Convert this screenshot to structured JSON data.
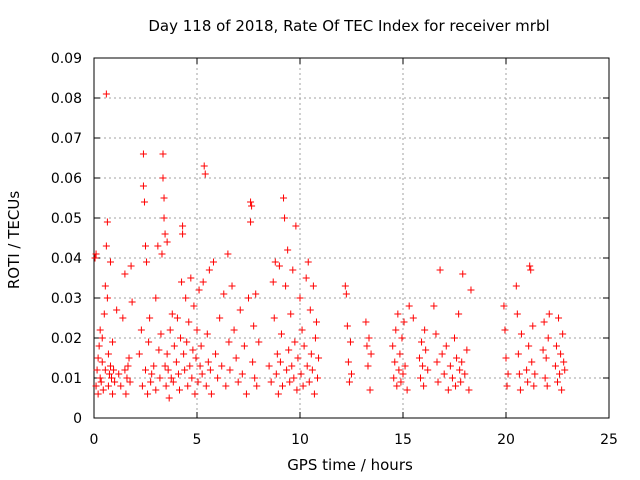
{
  "chart_data": {
    "type": "scatter",
    "title": "Day 118 of 2018, Rate Of TEC Index for receiver mrbl",
    "xlabel": "GPS time / hours",
    "ylabel": "ROTI / TECUs",
    "xlim": [
      0,
      25
    ],
    "ylim": [
      0,
      0.09
    ],
    "xticks": [
      0,
      5,
      10,
      15,
      20,
      25
    ],
    "xtick_labels": [
      "0",
      "5",
      "10",
      "15",
      "20",
      "25"
    ],
    "yticks": [
      0,
      0.01,
      0.02,
      0.03,
      0.04,
      0.05,
      0.06,
      0.07,
      0.08,
      0.09
    ],
    "ytick_labels": [
      "0",
      "0.01",
      "0.02",
      "0.03",
      "0.04",
      "0.05",
      "0.06",
      "0.07",
      "0.08",
      "0.09"
    ],
    "grid": true,
    "marker": "+",
    "color": "#ff0000",
    "series": [
      {
        "name": "ROTI",
        "points": [
          [
            0.05,
            0.04
          ],
          [
            0.1,
            0.041
          ],
          [
            0.1,
            0.008
          ],
          [
            0.15,
            0.012
          ],
          [
            0.2,
            0.015
          ],
          [
            0.2,
            0.006
          ],
          [
            0.25,
            0.018
          ],
          [
            0.3,
            0.01
          ],
          [
            0.3,
            0.022
          ],
          [
            0.35,
            0.009
          ],
          [
            0.4,
            0.014
          ],
          [
            0.4,
            0.02
          ],
          [
            0.45,
            0.007
          ],
          [
            0.5,
            0.026
          ],
          [
            0.55,
            0.033
          ],
          [
            0.55,
            0.012
          ],
          [
            0.6,
            0.081
          ],
          [
            0.6,
            0.043
          ],
          [
            0.65,
            0.049
          ],
          [
            0.65,
            0.03
          ],
          [
            0.7,
            0.016
          ],
          [
            0.7,
            0.008
          ],
          [
            0.75,
            0.011
          ],
          [
            0.8,
            0.039
          ],
          [
            0.8,
            0.013
          ],
          [
            0.85,
            0.01
          ],
          [
            0.9,
            0.019
          ],
          [
            0.9,
            0.006
          ],
          [
            0.95,
            0.012
          ],
          [
            1.0,
            0.009
          ],
          [
            1.1,
            0.027
          ],
          [
            1.2,
            0.011
          ],
          [
            1.3,
            0.008
          ],
          [
            1.4,
            0.025
          ],
          [
            1.5,
            0.012
          ],
          [
            1.5,
            0.036
          ],
          [
            1.55,
            0.006
          ],
          [
            1.6,
            0.01
          ],
          [
            1.65,
            0.013
          ],
          [
            1.7,
            0.015
          ],
          [
            1.75,
            0.009
          ],
          [
            1.8,
            0.038
          ],
          [
            1.85,
            0.029
          ],
          [
            2.2,
            0.016
          ],
          [
            2.3,
            0.022
          ],
          [
            2.35,
            0.008
          ],
          [
            2.4,
            0.066
          ],
          [
            2.4,
            0.058
          ],
          [
            2.45,
            0.054
          ],
          [
            2.5,
            0.043
          ],
          [
            2.5,
            0.012
          ],
          [
            2.55,
            0.039
          ],
          [
            2.6,
            0.006
          ],
          [
            2.65,
            0.019
          ],
          [
            2.7,
            0.025
          ],
          [
            2.75,
            0.009
          ],
          [
            2.8,
            0.011
          ],
          [
            2.9,
            0.013
          ],
          [
            3.0,
            0.007
          ],
          [
            3.0,
            0.03
          ],
          [
            3.1,
            0.043
          ],
          [
            3.15,
            0.017
          ],
          [
            3.2,
            0.01
          ],
          [
            3.25,
            0.021
          ],
          [
            3.3,
            0.041
          ],
          [
            3.35,
            0.066
          ],
          [
            3.35,
            0.06
          ],
          [
            3.4,
            0.055
          ],
          [
            3.4,
            0.05
          ],
          [
            3.45,
            0.046
          ],
          [
            3.45,
            0.013
          ],
          [
            3.5,
            0.008
          ],
          [
            3.55,
            0.044
          ],
          [
            3.55,
            0.016
          ],
          [
            3.6,
            0.012
          ],
          [
            3.65,
            0.005
          ],
          [
            3.7,
            0.022
          ],
          [
            3.75,
            0.01
          ],
          [
            3.8,
            0.026
          ],
          [
            3.85,
            0.009
          ],
          [
            3.9,
            0.018
          ],
          [
            4.0,
            0.014
          ],
          [
            4.05,
            0.025
          ],
          [
            4.1,
            0.011
          ],
          [
            4.15,
            0.007
          ],
          [
            4.2,
            0.02
          ],
          [
            4.25,
            0.034
          ],
          [
            4.3,
            0.048
          ],
          [
            4.3,
            0.046
          ],
          [
            4.35,
            0.016
          ],
          [
            4.4,
            0.012
          ],
          [
            4.45,
            0.03
          ],
          [
            4.5,
            0.019
          ],
          [
            4.55,
            0.008
          ],
          [
            4.6,
            0.024
          ],
          [
            4.65,
            0.013
          ],
          [
            4.7,
            0.035
          ],
          [
            4.75,
            0.01
          ],
          [
            4.8,
            0.017
          ],
          [
            4.85,
            0.028
          ],
          [
            4.9,
            0.006
          ],
          [
            4.95,
            0.015
          ],
          [
            5.0,
            0.022
          ],
          [
            5.05,
            0.009
          ],
          [
            5.1,
            0.032
          ],
          [
            5.15,
            0.013
          ],
          [
            5.2,
            0.018
          ],
          [
            5.25,
            0.011
          ],
          [
            5.3,
            0.034
          ],
          [
            5.35,
            0.063
          ],
          [
            5.4,
            0.061
          ],
          [
            5.45,
            0.008
          ],
          [
            5.5,
            0.021
          ],
          [
            5.55,
            0.014
          ],
          [
            5.6,
            0.037
          ],
          [
            5.65,
            0.012
          ],
          [
            5.7,
            0.006
          ],
          [
            5.8,
            0.039
          ],
          [
            5.9,
            0.016
          ],
          [
            6.0,
            0.01
          ],
          [
            6.1,
            0.025
          ],
          [
            6.2,
            0.013
          ],
          [
            6.3,
            0.031
          ],
          [
            6.4,
            0.008
          ],
          [
            6.5,
            0.041
          ],
          [
            6.55,
            0.019
          ],
          [
            6.6,
            0.012
          ],
          [
            6.7,
            0.033
          ],
          [
            6.8,
            0.022
          ],
          [
            6.9,
            0.015
          ],
          [
            7.0,
            0.009
          ],
          [
            7.1,
            0.027
          ],
          [
            7.2,
            0.011
          ],
          [
            7.3,
            0.018
          ],
          [
            7.4,
            0.006
          ],
          [
            7.5,
            0.03
          ],
          [
            7.6,
            0.049
          ],
          [
            7.6,
            0.054
          ],
          [
            7.65,
            0.053
          ],
          [
            7.7,
            0.014
          ],
          [
            7.75,
            0.023
          ],
          [
            7.8,
            0.01
          ],
          [
            7.85,
            0.031
          ],
          [
            7.9,
            0.008
          ],
          [
            8.0,
            0.019
          ],
          [
            8.5,
            0.013
          ],
          [
            8.6,
            0.009
          ],
          [
            8.7,
            0.034
          ],
          [
            8.75,
            0.025
          ],
          [
            8.8,
            0.039
          ],
          [
            8.85,
            0.011
          ],
          [
            8.9,
            0.016
          ],
          [
            8.95,
            0.006
          ],
          [
            9.0,
            0.038
          ],
          [
            9.05,
            0.014
          ],
          [
            9.1,
            0.021
          ],
          [
            9.15,
            0.008
          ],
          [
            9.2,
            0.055
          ],
          [
            9.25,
            0.05
          ],
          [
            9.3,
            0.033
          ],
          [
            9.35,
            0.012
          ],
          [
            9.4,
            0.042
          ],
          [
            9.45,
            0.017
          ],
          [
            9.5,
            0.009
          ],
          [
            9.55,
            0.026
          ],
          [
            9.6,
            0.013
          ],
          [
            9.65,
            0.037
          ],
          [
            9.7,
            0.01
          ],
          [
            9.75,
            0.019
          ],
          [
            9.8,
            0.048
          ],
          [
            9.85,
            0.007
          ],
          [
            9.9,
            0.015
          ],
          [
            10.0,
            0.03
          ],
          [
            10.05,
            0.011
          ],
          [
            10.1,
            0.022
          ],
          [
            10.15,
            0.008
          ],
          [
            10.2,
            0.018
          ],
          [
            10.3,
            0.035
          ],
          [
            10.35,
            0.013
          ],
          [
            10.4,
            0.039
          ],
          [
            10.45,
            0.009
          ],
          [
            10.5,
            0.027
          ],
          [
            10.55,
            0.016
          ],
          [
            10.6,
            0.012
          ],
          [
            10.65,
            0.033
          ],
          [
            10.7,
            0.006
          ],
          [
            10.75,
            0.02
          ],
          [
            10.8,
            0.024
          ],
          [
            10.85,
            0.01
          ],
          [
            10.9,
            0.015
          ],
          [
            12.2,
            0.033
          ],
          [
            12.25,
            0.031
          ],
          [
            12.3,
            0.023
          ],
          [
            12.35,
            0.014
          ],
          [
            12.4,
            0.009
          ],
          [
            12.45,
            0.019
          ],
          [
            12.5,
            0.011
          ],
          [
            13.2,
            0.024
          ],
          [
            13.25,
            0.018
          ],
          [
            13.3,
            0.013
          ],
          [
            13.35,
            0.02
          ],
          [
            13.4,
            0.007
          ],
          [
            13.45,
            0.016
          ],
          [
            14.5,
            0.018
          ],
          [
            14.55,
            0.01
          ],
          [
            14.6,
            0.014
          ],
          [
            14.65,
            0.022
          ],
          [
            14.7,
            0.008
          ],
          [
            14.75,
            0.026
          ],
          [
            14.8,
            0.012
          ],
          [
            14.85,
            0.016
          ],
          [
            14.9,
            0.009
          ],
          [
            14.95,
            0.02
          ],
          [
            15.0,
            0.011
          ],
          [
            15.05,
            0.024
          ],
          [
            15.1,
            0.013
          ],
          [
            15.2,
            0.007
          ],
          [
            15.3,
            0.028
          ],
          [
            15.5,
            0.025
          ],
          [
            15.8,
            0.015
          ],
          [
            15.85,
            0.01
          ],
          [
            15.9,
            0.019
          ],
          [
            15.95,
            0.013
          ],
          [
            16.0,
            0.008
          ],
          [
            16.05,
            0.022
          ],
          [
            16.1,
            0.017
          ],
          [
            16.2,
            0.012
          ],
          [
            16.5,
            0.028
          ],
          [
            16.6,
            0.021
          ],
          [
            16.65,
            0.014
          ],
          [
            16.7,
            0.009
          ],
          [
            16.8,
            0.037
          ],
          [
            16.9,
            0.016
          ],
          [
            17.0,
            0.011
          ],
          [
            17.1,
            0.018
          ],
          [
            17.2,
            0.007
          ],
          [
            17.3,
            0.013
          ],
          [
            17.4,
            0.01
          ],
          [
            17.5,
            0.02
          ],
          [
            17.55,
            0.008
          ],
          [
            17.6,
            0.015
          ],
          [
            17.7,
            0.026
          ],
          [
            17.75,
            0.012
          ],
          [
            17.8,
            0.009
          ],
          [
            17.85,
            0.014
          ],
          [
            17.9,
            0.036
          ],
          [
            18.0,
            0.011
          ],
          [
            18.1,
            0.017
          ],
          [
            18.2,
            0.007
          ],
          [
            18.3,
            0.032
          ],
          [
            19.9,
            0.028
          ],
          [
            19.95,
            0.022
          ],
          [
            20.0,
            0.015
          ],
          [
            20.05,
            0.008
          ],
          [
            20.1,
            0.011
          ],
          [
            20.5,
            0.033
          ],
          [
            20.55,
            0.026
          ],
          [
            20.6,
            0.016
          ],
          [
            20.65,
            0.011
          ],
          [
            20.7,
            0.007
          ],
          [
            20.75,
            0.021
          ],
          [
            21.0,
            0.012
          ],
          [
            21.05,
            0.009
          ],
          [
            21.1,
            0.018
          ],
          [
            21.15,
            0.038
          ],
          [
            21.2,
            0.037
          ],
          [
            21.25,
            0.014
          ],
          [
            21.3,
            0.023
          ],
          [
            21.35,
            0.008
          ],
          [
            21.4,
            0.011
          ],
          [
            21.8,
            0.017
          ],
          [
            21.85,
            0.024
          ],
          [
            21.9,
            0.01
          ],
          [
            21.95,
            0.015
          ],
          [
            22.0,
            0.008
          ],
          [
            22.05,
            0.02
          ],
          [
            22.1,
            0.026
          ],
          [
            22.4,
            0.013
          ],
          [
            22.45,
            0.018
          ],
          [
            22.5,
            0.009
          ],
          [
            22.55,
            0.025
          ],
          [
            22.6,
            0.011
          ],
          [
            22.65,
            0.016
          ],
          [
            22.7,
            0.007
          ],
          [
            22.75,
            0.021
          ],
          [
            22.8,
            0.014
          ],
          [
            22.85,
            0.012
          ]
        ]
      }
    ]
  }
}
